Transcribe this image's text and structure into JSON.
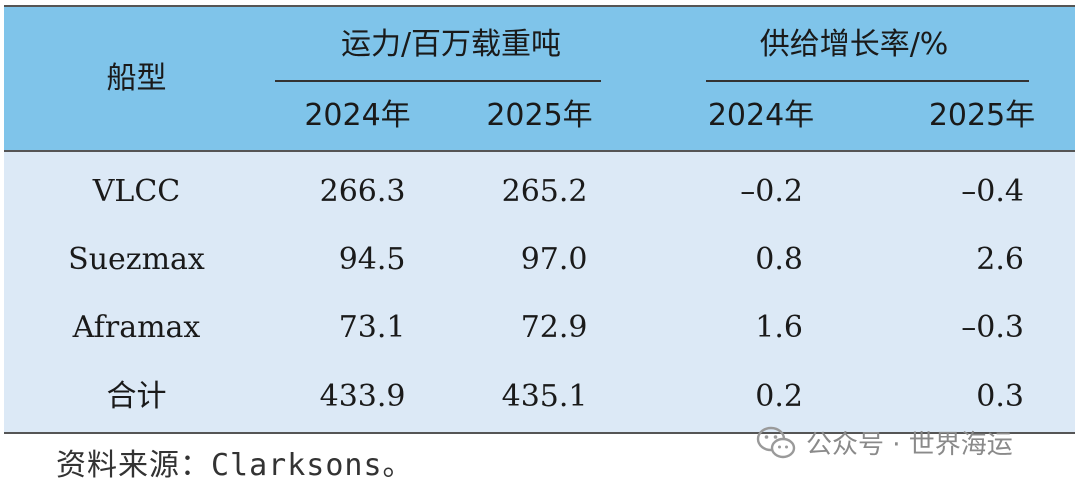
{
  "table": {
    "header": {
      "ship_type": "船型",
      "capacity_group": "运力/百万载重吨",
      "growth_group": "供给增长率/%",
      "years": [
        "2024年",
        "2025年",
        "2024年",
        "2025年"
      ]
    },
    "rows": [
      {
        "type": "VLCC",
        "cap2024": "266.3",
        "cap2025": "265.2",
        "g2024": "–0.2",
        "g2025": "–0.4"
      },
      {
        "type": "Suezmax",
        "cap2024": "94.5",
        "cap2025": "97.0",
        "g2024": "0.8",
        "g2025": "2.6"
      },
      {
        "type": "Aframax",
        "cap2024": "73.1",
        "cap2025": "72.9",
        "g2024": "1.6",
        "g2025": "–0.3"
      },
      {
        "type": "合计",
        "cap2024": "433.9",
        "cap2025": "435.1",
        "g2024": "0.2",
        "g2025": "0.3"
      }
    ]
  },
  "source": "资料来源：Clarksons。",
  "watermark": {
    "icon": "wechat-icon",
    "text": "公众号 · 世界海运"
  },
  "colors": {
    "header_bg": "#7fc4ea",
    "body_bg": "#dce9f6"
  },
  "chart_data": {
    "type": "table",
    "columns": [
      "船型",
      "运力/百万载重吨 2024年",
      "运力/百万载重吨 2025年",
      "供给增长率/% 2024年",
      "供给增长率/% 2025年"
    ],
    "rows": [
      [
        "VLCC",
        266.3,
        265.2,
        -0.2,
        -0.4
      ],
      [
        "Suezmax",
        94.5,
        97.0,
        0.8,
        2.6
      ],
      [
        "Aframax",
        73.1,
        72.9,
        1.6,
        -0.3
      ],
      [
        "合计",
        433.9,
        435.1,
        0.2,
        0.3
      ]
    ]
  }
}
